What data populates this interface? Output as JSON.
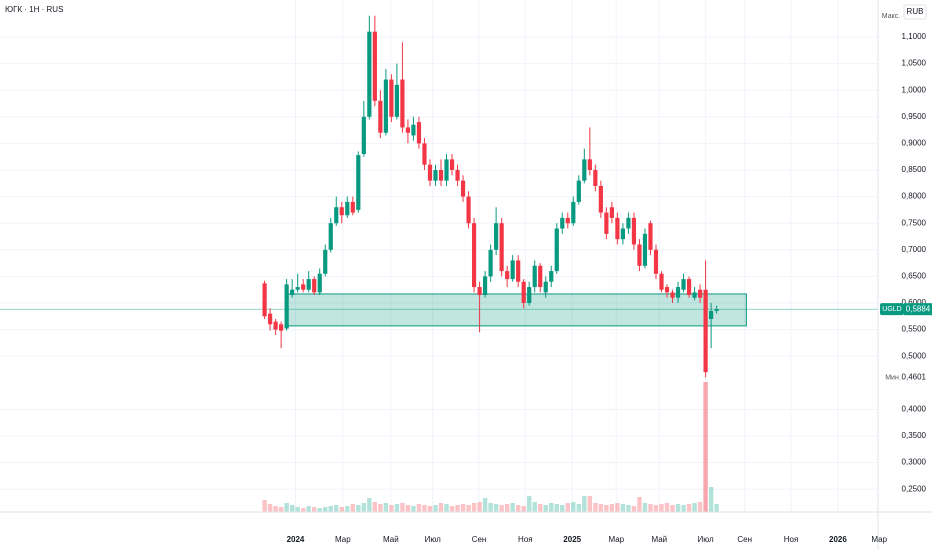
{
  "chart_data": {
    "type": "candlestick",
    "title": "ЮГК · 1Н · RUS",
    "currency": "RUB",
    "max_label": "Макс.",
    "min_label": "Мин.",
    "min_price": {
      "value": 0.4601,
      "label": "0,4601"
    },
    "symbol": "UGLD",
    "last_price": {
      "value": 0.5884,
      "label": "0,5884"
    },
    "up_color": "#089981",
    "down_color": "#f23645",
    "zone_color": "#089981",
    "grid": true,
    "zone": {
      "x0": 4,
      "x1": 87.4,
      "y0": 0.557,
      "y1": 0.617
    },
    "xlim": [
      -48,
      112
    ],
    "xticks": [
      {
        "value": 5.6,
        "label": "2024"
      },
      {
        "value": 14.2,
        "label": "Мар"
      },
      {
        "value": 22.9,
        "label": "Май"
      },
      {
        "value": 30.5,
        "label": "Июл"
      },
      {
        "value": 38.9,
        "label": "Сен"
      },
      {
        "value": 47.3,
        "label": "Ноя"
      },
      {
        "value": 55.8,
        "label": "2025"
      },
      {
        "value": 63.8,
        "label": "Мар"
      },
      {
        "value": 71.6,
        "label": "Май"
      },
      {
        "value": 80,
        "label": "Июл"
      },
      {
        "value": 87.1,
        "label": "Сен"
      },
      {
        "value": 95.5,
        "label": "Ноя"
      },
      {
        "value": 104,
        "label": "2026"
      },
      {
        "value": 111.5,
        "label": "Мар"
      }
    ],
    "ylim": [
      0.2072,
      1.1695
    ],
    "yticks": [
      {
        "value": 0.25,
        "label": "0,2500"
      },
      {
        "value": 0.3,
        "label": "0,3000"
      },
      {
        "value": 0.35,
        "label": "0,3500"
      },
      {
        "value": 0.4,
        "label": "0,4000"
      },
      {
        "value": 0.5,
        "label": "0,5000"
      },
      {
        "value": 0.55,
        "label": "0,5500"
      },
      {
        "value": 0.6,
        "label": "0,6000"
      },
      {
        "value": 0.65,
        "label": "0,6500"
      },
      {
        "value": 0.7,
        "label": "0,7000"
      },
      {
        "value": 0.75,
        "label": "0,7500"
      },
      {
        "value": 0.8,
        "label": "0,8000"
      },
      {
        "value": 0.85,
        "label": "0,8500"
      },
      {
        "value": 0.9,
        "label": "0,9000"
      },
      {
        "value": 0.95,
        "label": "0,9500"
      },
      {
        "value": 1.0,
        "label": "1,0000"
      },
      {
        "value": 1.05,
        "label": "1,0500"
      },
      {
        "value": 1.1,
        "label": "1,1000"
      }
    ],
    "open": [
      0.637,
      0.58,
      0.565,
      0.56,
      0.552,
      0.615,
      0.625,
      0.635,
      0.625,
      0.645,
      0.62,
      0.655,
      0.7,
      0.75,
      0.78,
      0.765,
      0.79,
      0.775,
      0.88,
      0.95,
      1.11,
      0.98,
      0.92,
      1.02,
      0.95,
      1.02,
      0.93,
      0.915,
      0.94,
      0.9,
      0.86,
      0.83,
      0.85,
      0.83,
      0.87,
      0.85,
      0.83,
      0.8,
      0.75,
      0.63,
      0.615,
      0.65,
      0.7,
      0.75,
      0.66,
      0.645,
      0.68,
      0.64,
      0.6,
      0.63,
      0.67,
      0.62,
      0.64,
      0.66,
      0.74,
      0.76,
      0.75,
      0.79,
      0.83,
      0.87,
      0.85,
      0.82,
      0.77,
      0.78,
      0.76,
      0.72,
      0.74,
      0.76,
      0.71,
      0.67,
      0.75,
      0.7,
      0.655,
      0.63,
      0.62,
      0.61,
      0.625,
      0.645,
      0.61,
      0.625,
      0.625,
      0.57,
      0.585
    ],
    "high": [
      0.642,
      0.59,
      0.57,
      0.565,
      0.645,
      0.645,
      0.655,
      0.645,
      0.66,
      0.65,
      0.665,
      0.71,
      0.76,
      0.8,
      0.79,
      0.8,
      0.8,
      0.885,
      0.98,
      1.14,
      1.14,
      1.0,
      1.04,
      1.03,
      1.05,
      1.09,
      0.945,
      0.95,
      0.95,
      0.91,
      0.87,
      0.86,
      0.87,
      0.88,
      0.88,
      0.86,
      0.84,
      0.81,
      0.76,
      0.64,
      0.66,
      0.71,
      0.78,
      0.76,
      0.67,
      0.69,
      0.69,
      0.645,
      0.64,
      0.68,
      0.675,
      0.65,
      0.67,
      0.75,
      0.77,
      0.77,
      0.8,
      0.84,
      0.89,
      0.93,
      0.86,
      0.83,
      0.78,
      0.79,
      0.77,
      0.75,
      0.77,
      0.77,
      0.72,
      0.74,
      0.755,
      0.71,
      0.66,
      0.635,
      0.625,
      0.64,
      0.655,
      0.65,
      0.63,
      0.635,
      0.68,
      0.6,
      0.595
    ],
    "low": [
      0.57,
      0.548,
      0.54,
      0.515,
      0.548,
      0.61,
      0.62,
      0.62,
      0.62,
      0.615,
      0.615,
      0.65,
      0.695,
      0.745,
      0.75,
      0.76,
      0.765,
      0.77,
      0.875,
      0.945,
      0.97,
      0.91,
      0.915,
      0.94,
      0.945,
      0.92,
      0.9,
      0.905,
      0.89,
      0.85,
      0.82,
      0.82,
      0.82,
      0.82,
      0.84,
      0.82,
      0.79,
      0.74,
      0.62,
      0.545,
      0.61,
      0.64,
      0.69,
      0.65,
      0.63,
      0.64,
      0.63,
      0.59,
      0.595,
      0.62,
      0.62,
      0.61,
      0.63,
      0.655,
      0.73,
      0.74,
      0.745,
      0.785,
      0.825,
      0.84,
      0.81,
      0.76,
      0.72,
      0.75,
      0.71,
      0.71,
      0.73,
      0.7,
      0.66,
      0.665,
      0.69,
      0.645,
      0.62,
      0.61,
      0.6,
      0.6,
      0.62,
      0.61,
      0.605,
      0.6,
      0.4601,
      0.515,
      0.58
    ],
    "close": [
      0.575,
      0.56,
      0.55,
      0.548,
      0.635,
      0.625,
      0.63,
      0.625,
      0.645,
      0.62,
      0.655,
      0.7,
      0.75,
      0.78,
      0.765,
      0.79,
      0.77,
      0.878,
      0.95,
      1.11,
      0.98,
      0.92,
      1.02,
      0.95,
      1.01,
      0.93,
      0.92,
      0.935,
      0.9,
      0.86,
      0.83,
      0.85,
      0.83,
      0.87,
      0.85,
      0.83,
      0.8,
      0.75,
      0.63,
      0.615,
      0.65,
      0.7,
      0.75,
      0.66,
      0.645,
      0.68,
      0.64,
      0.6,
      0.63,
      0.67,
      0.63,
      0.64,
      0.66,
      0.74,
      0.76,
      0.75,
      0.79,
      0.83,
      0.87,
      0.85,
      0.82,
      0.77,
      0.73,
      0.76,
      0.72,
      0.74,
      0.76,
      0.71,
      0.67,
      0.73,
      0.7,
      0.655,
      0.625,
      0.62,
      0.61,
      0.63,
      0.645,
      0.615,
      0.62,
      0.61,
      0.47,
      0.585,
      0.5884
    ],
    "volume": [
      12,
      8,
      6,
      5,
      9,
      7,
      5,
      4,
      6,
      5,
      4,
      5,
      6,
      7,
      5,
      6,
      8,
      7,
      9,
      14,
      10,
      8,
      9,
      7,
      8,
      9,
      7,
      6,
      8,
      7,
      6,
      7,
      9,
      8,
      6,
      7,
      8,
      7,
      9,
      10,
      14,
      9,
      8,
      7,
      8,
      9,
      7,
      6,
      16,
      10,
      8,
      7,
      9,
      8,
      7,
      9,
      10,
      8,
      16,
      16,
      9,
      8,
      7,
      8,
      9,
      8,
      7,
      6,
      15,
      9,
      8,
      7,
      8,
      9,
      7,
      8,
      7,
      8,
      9,
      10,
      130,
      25,
      8
    ]
  }
}
